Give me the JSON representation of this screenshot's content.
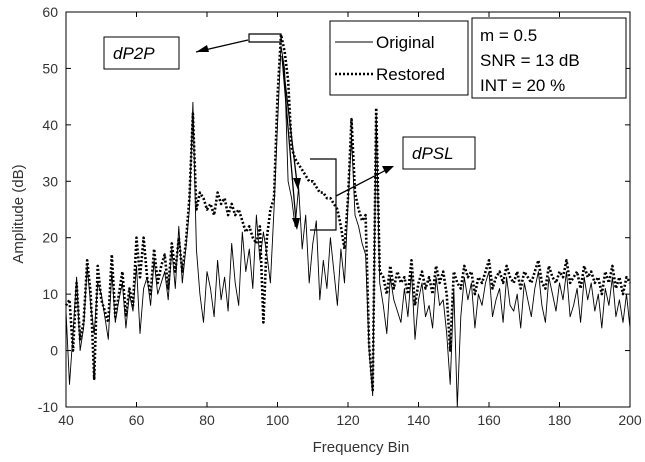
{
  "chart_data": {
    "type": "line",
    "title": "",
    "xlabel": "Frequency Bin",
    "ylabel": "Amplitude (dB)",
    "xlim": [
      40,
      200
    ],
    "ylim": [
      -10,
      60
    ],
    "xticks": [
      "40",
      "60",
      "80",
      "100",
      "120",
      "140",
      "160",
      "180",
      "200"
    ],
    "yticks": [
      "-10",
      "0",
      "10",
      "20",
      "30",
      "40",
      "50",
      "60"
    ],
    "grid": false,
    "legend_position": "top-right",
    "x": [
      40,
      41,
      42,
      43,
      44,
      45,
      46,
      47,
      48,
      49,
      50,
      51,
      52,
      53,
      54,
      55,
      56,
      57,
      58,
      59,
      60,
      61,
      62,
      63,
      64,
      65,
      66,
      67,
      68,
      69,
      70,
      71,
      72,
      73,
      74,
      75,
      76,
      77,
      78,
      79,
      80,
      81,
      82,
      83,
      84,
      85,
      86,
      87,
      88,
      89,
      90,
      91,
      92,
      93,
      94,
      95,
      96,
      97,
      98,
      99,
      100,
      101,
      102,
      103,
      104,
      105,
      106,
      107,
      108,
      109,
      110,
      111,
      112,
      113,
      114,
      115,
      116,
      117,
      118,
      119,
      120,
      121,
      122,
      123,
      124,
      125,
      126,
      127,
      128,
      129,
      130,
      131,
      132,
      133,
      134,
      135,
      136,
      137,
      138,
      139,
      140,
      141,
      142,
      143,
      144,
      145,
      146,
      147,
      148,
      149,
      150,
      151,
      152,
      153,
      154,
      155,
      156,
      157,
      158,
      159,
      160,
      161,
      162,
      163,
      164,
      165,
      166,
      167,
      168,
      169,
      170,
      171,
      172,
      173,
      174,
      175,
      176,
      177,
      178,
      179,
      180,
      181,
      182,
      183,
      184,
      185,
      186,
      187,
      188,
      189,
      190,
      191,
      192,
      193,
      194,
      195,
      196,
      197,
      198,
      199,
      200
    ],
    "series": [
      {
        "name": "Original",
        "style": "solid",
        "values": [
          7,
          -6,
          3,
          13,
          0,
          4,
          15,
          8,
          3,
          12,
          10,
          6,
          2,
          14,
          5,
          9,
          12,
          4,
          10,
          7,
          15,
          3,
          11,
          13,
          8,
          16,
          10,
          12,
          14,
          9,
          18,
          11,
          22,
          12,
          18,
          25,
          44,
          18,
          10,
          5,
          14,
          11,
          6,
          16,
          9,
          13,
          7,
          19,
          12,
          8,
          21,
          14,
          18,
          11,
          24,
          16,
          21,
          17,
          12,
          25,
          40,
          54,
          50,
          30,
          27,
          22,
          29,
          18,
          24,
          12,
          19,
          23,
          9,
          16,
          11,
          20,
          14,
          8,
          18,
          12,
          26,
          38,
          24,
          22,
          19,
          17,
          0,
          -8,
          42,
          12,
          8,
          3,
          13,
          9,
          7,
          5,
          11,
          6,
          14,
          2,
          9,
          12,
          6,
          8,
          4,
          13,
          8,
          9,
          3,
          -6,
          11,
          -10,
          6,
          13,
          9,
          12,
          4,
          10,
          8,
          12,
          14,
          6,
          9,
          11,
          5,
          13,
          8,
          7,
          10,
          4,
          12,
          9,
          6,
          11,
          14,
          8,
          5,
          13,
          10,
          7,
          12,
          9,
          14,
          6,
          8,
          11,
          5,
          13,
          9,
          12,
          7,
          10,
          4,
          11,
          8,
          13,
          6,
          9,
          5,
          10,
          4
        ]
      },
      {
        "name": "Restored",
        "style": "dotted",
        "values": [
          8,
          9,
          0,
          12,
          2,
          5,
          16,
          10,
          -5,
          15,
          9,
          7,
          5,
          17,
          6,
          10,
          14,
          6,
          11,
          8,
          20,
          13,
          20,
          13,
          10,
          18,
          12,
          15,
          17,
          11,
          19,
          14,
          20,
          14,
          19,
          27,
          42,
          25,
          28,
          27,
          25,
          26,
          24,
          28,
          26,
          27,
          24,
          26,
          24,
          25,
          23,
          21,
          22,
          20,
          19,
          22,
          5,
          20,
          25,
          27,
          45,
          56,
          53,
          48,
          36,
          34,
          33,
          32,
          31,
          30,
          30,
          29,
          28,
          28,
          27,
          27,
          26,
          25,
          22,
          18,
          27,
          41,
          28,
          25,
          23,
          24,
          1,
          -7,
          43,
          14,
          13,
          10,
          15,
          11,
          14,
          12,
          13,
          10,
          16,
          8,
          12,
          14,
          11,
          13,
          10,
          15,
          12,
          14,
          10,
          0,
          14,
          12,
          11,
          15,
          13,
          14,
          10,
          13,
          12,
          14,
          16,
          11,
          13,
          14,
          12,
          15,
          13,
          12,
          14,
          11,
          14,
          13,
          12,
          14,
          16,
          12,
          11,
          15,
          13,
          12,
          14,
          13,
          16,
          12,
          13,
          14,
          11,
          15,
          13,
          14,
          12,
          13,
          10,
          14,
          12,
          15,
          11,
          13,
          10,
          13,
          12
        ]
      }
    ],
    "info_lines": [
      "m = 0.5",
      "SNR = 13 dB",
      "INT = 20 %"
    ],
    "annotations": [
      "dP2P",
      "dPSL"
    ]
  }
}
